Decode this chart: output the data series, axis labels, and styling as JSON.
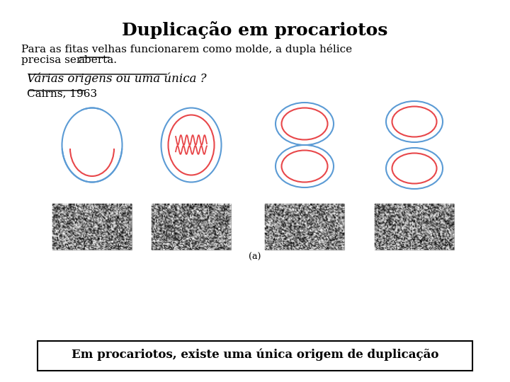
{
  "title": "Duplicação em procariotos",
  "line1": "Para as fitas velhas funcionarem como molde, a dupla hélice",
  "line2a": "precisa ser ",
  "line2b": "aberta.",
  "text2": "Várias origens ou uma única ?",
  "text3": "Cairns, 1963",
  "footer": "Em procariotos, existe uma única origem de duplicação",
  "bg_color": "#ffffff",
  "text_color": "#000000",
  "blue_color": "#5b9bd5",
  "red_color": "#e8474a",
  "label_a": "(a)"
}
